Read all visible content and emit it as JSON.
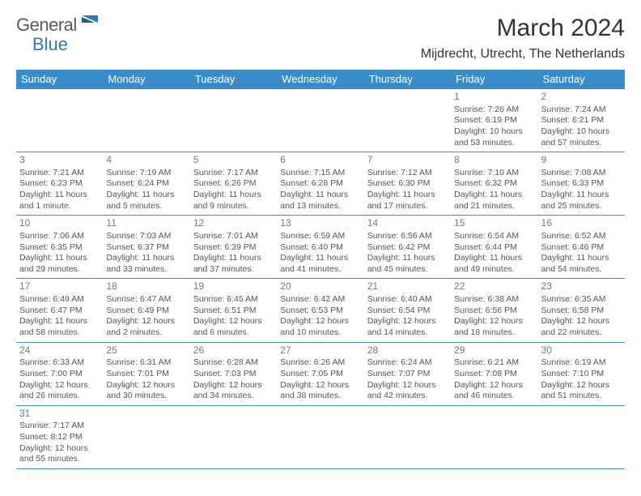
{
  "logo": {
    "text1": "General",
    "text2": "Blue"
  },
  "title": "March 2024",
  "location": "Mijdrecht, Utrecht, The Netherlands",
  "colors": {
    "header_bg": "#3b8bc9",
    "header_text": "#ffffff",
    "border": "#3b8bc9"
  },
  "weekdays": [
    "Sunday",
    "Monday",
    "Tuesday",
    "Wednesday",
    "Thursday",
    "Friday",
    "Saturday"
  ],
  "weeks": [
    [
      null,
      null,
      null,
      null,
      null,
      {
        "n": "1",
        "sunrise": "7:26 AM",
        "sunset": "6:19 PM",
        "daylight": "10 hours and 53 minutes."
      },
      {
        "n": "2",
        "sunrise": "7:24 AM",
        "sunset": "6:21 PM",
        "daylight": "10 hours and 57 minutes."
      }
    ],
    [
      {
        "n": "3",
        "sunrise": "7:21 AM",
        "sunset": "6:23 PM",
        "daylight": "11 hours and 1 minute."
      },
      {
        "n": "4",
        "sunrise": "7:19 AM",
        "sunset": "6:24 PM",
        "daylight": "11 hours and 5 minutes."
      },
      {
        "n": "5",
        "sunrise": "7:17 AM",
        "sunset": "6:26 PM",
        "daylight": "11 hours and 9 minutes."
      },
      {
        "n": "6",
        "sunrise": "7:15 AM",
        "sunset": "6:28 PM",
        "daylight": "11 hours and 13 minutes."
      },
      {
        "n": "7",
        "sunrise": "7:12 AM",
        "sunset": "6:30 PM",
        "daylight": "11 hours and 17 minutes."
      },
      {
        "n": "8",
        "sunrise": "7:10 AM",
        "sunset": "6:32 PM",
        "daylight": "11 hours and 21 minutes."
      },
      {
        "n": "9",
        "sunrise": "7:08 AM",
        "sunset": "6:33 PM",
        "daylight": "11 hours and 25 minutes."
      }
    ],
    [
      {
        "n": "10",
        "sunrise": "7:06 AM",
        "sunset": "6:35 PM",
        "daylight": "11 hours and 29 minutes."
      },
      {
        "n": "11",
        "sunrise": "7:03 AM",
        "sunset": "6:37 PM",
        "daylight": "11 hours and 33 minutes."
      },
      {
        "n": "12",
        "sunrise": "7:01 AM",
        "sunset": "6:39 PM",
        "daylight": "11 hours and 37 minutes."
      },
      {
        "n": "13",
        "sunrise": "6:59 AM",
        "sunset": "6:40 PM",
        "daylight": "11 hours and 41 minutes."
      },
      {
        "n": "14",
        "sunrise": "6:56 AM",
        "sunset": "6:42 PM",
        "daylight": "11 hours and 45 minutes."
      },
      {
        "n": "15",
        "sunrise": "6:54 AM",
        "sunset": "6:44 PM",
        "daylight": "11 hours and 49 minutes."
      },
      {
        "n": "16",
        "sunrise": "6:52 AM",
        "sunset": "6:46 PM",
        "daylight": "11 hours and 54 minutes."
      }
    ],
    [
      {
        "n": "17",
        "sunrise": "6:49 AM",
        "sunset": "6:47 PM",
        "daylight": "11 hours and 58 minutes."
      },
      {
        "n": "18",
        "sunrise": "6:47 AM",
        "sunset": "6:49 PM",
        "daylight": "12 hours and 2 minutes."
      },
      {
        "n": "19",
        "sunrise": "6:45 AM",
        "sunset": "6:51 PM",
        "daylight": "12 hours and 6 minutes."
      },
      {
        "n": "20",
        "sunrise": "6:42 AM",
        "sunset": "6:53 PM",
        "daylight": "12 hours and 10 minutes."
      },
      {
        "n": "21",
        "sunrise": "6:40 AM",
        "sunset": "6:54 PM",
        "daylight": "12 hours and 14 minutes."
      },
      {
        "n": "22",
        "sunrise": "6:38 AM",
        "sunset": "6:56 PM",
        "daylight": "12 hours and 18 minutes."
      },
      {
        "n": "23",
        "sunrise": "6:35 AM",
        "sunset": "6:58 PM",
        "daylight": "12 hours and 22 minutes."
      }
    ],
    [
      {
        "n": "24",
        "sunrise": "6:33 AM",
        "sunset": "7:00 PM",
        "daylight": "12 hours and 26 minutes."
      },
      {
        "n": "25",
        "sunrise": "6:31 AM",
        "sunset": "7:01 PM",
        "daylight": "12 hours and 30 minutes."
      },
      {
        "n": "26",
        "sunrise": "6:28 AM",
        "sunset": "7:03 PM",
        "daylight": "12 hours and 34 minutes."
      },
      {
        "n": "27",
        "sunrise": "6:26 AM",
        "sunset": "7:05 PM",
        "daylight": "12 hours and 38 minutes."
      },
      {
        "n": "28",
        "sunrise": "6:24 AM",
        "sunset": "7:07 PM",
        "daylight": "12 hours and 42 minutes."
      },
      {
        "n": "29",
        "sunrise": "6:21 AM",
        "sunset": "7:08 PM",
        "daylight": "12 hours and 46 minutes."
      },
      {
        "n": "30",
        "sunrise": "6:19 AM",
        "sunset": "7:10 PM",
        "daylight": "12 hours and 51 minutes."
      }
    ],
    [
      {
        "n": "31",
        "sunrise": "7:17 AM",
        "sunset": "8:12 PM",
        "daylight": "12 hours and 55 minutes."
      },
      null,
      null,
      null,
      null,
      null,
      null
    ]
  ],
  "labels": {
    "sunrise": "Sunrise:",
    "sunset": "Sunset:",
    "daylight": "Daylight:"
  }
}
